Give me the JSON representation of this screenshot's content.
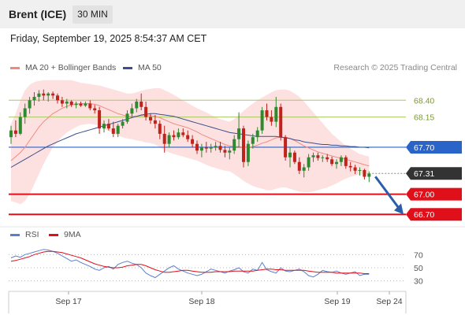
{
  "header": {
    "title": "Brent (ICE)",
    "timeframe": "30 MIN",
    "timestamp": "Friday, September 19, 2025 8:54:37 AM CET"
  },
  "legend": {
    "ma20_label": "MA 20 + Bollinger Bands",
    "ma50_label": "MA 50",
    "research": "Research © 2025 Trading Central",
    "rsi_label": "RSI",
    "rsi_ma_label": "9MA"
  },
  "colors": {
    "ma20": "#f08a80",
    "ma50": "#3a4f8f",
    "bollinger_fill": "#fde1e1",
    "candle_up": "#2f8a2f",
    "candle_down": "#c0221c",
    "resistance": "#a8c860",
    "pivot": "#2a64c8",
    "support": "#e0101a",
    "current": "#333333",
    "arrow": "#2a5ea8",
    "rsi": "#5a7fd0",
    "rsi_ma": "#e0101a"
  },
  "chart_data": [
    {
      "type": "candlestick",
      "title": "Brent (ICE) 30 MIN",
      "ylim": [
        66.55,
        68.72
      ],
      "x_ticks": [
        "Sep 17",
        "Sep 18",
        "Sep 19",
        "Sep 24"
      ],
      "levels": [
        {
          "label": "68.40",
          "value": 68.4,
          "kind": "resistance"
        },
        {
          "label": "68.15",
          "value": 68.15,
          "kind": "resistance"
        },
        {
          "label": "67.70",
          "value": 67.7,
          "kind": "pivot"
        },
        {
          "label": "67.31",
          "value": 67.31,
          "kind": "current"
        },
        {
          "label": "67.00",
          "value": 67.0,
          "kind": "support"
        },
        {
          "label": "66.70",
          "value": 66.7,
          "kind": "support"
        }
      ],
      "ohlc": [
        [
          67.85,
          68.02,
          67.75,
          67.95
        ],
        [
          67.95,
          68.1,
          67.85,
          67.9
        ],
        [
          67.9,
          68.22,
          67.88,
          68.15
        ],
        [
          68.15,
          68.35,
          68.05,
          68.28
        ],
        [
          68.28,
          68.45,
          68.2,
          68.4
        ],
        [
          68.4,
          68.52,
          68.32,
          68.45
        ],
        [
          68.45,
          68.55,
          68.38,
          68.5
        ],
        [
          68.5,
          68.56,
          68.4,
          68.47
        ],
        [
          68.47,
          68.52,
          68.38,
          68.5
        ],
        [
          68.5,
          68.53,
          68.42,
          68.47
        ],
        [
          68.47,
          68.5,
          68.35,
          68.4
        ],
        [
          68.4,
          68.45,
          68.3,
          68.35
        ],
        [
          68.35,
          68.42,
          68.28,
          68.38
        ],
        [
          68.38,
          68.4,
          68.3,
          68.33
        ],
        [
          68.33,
          68.38,
          68.28,
          68.35
        ],
        [
          68.35,
          68.38,
          68.3,
          68.32
        ],
        [
          68.32,
          68.38,
          68.3,
          68.35
        ],
        [
          68.35,
          68.4,
          68.25,
          68.28
        ],
        [
          68.28,
          68.33,
          68.2,
          68.25
        ],
        [
          68.25,
          68.3,
          67.9,
          67.98
        ],
        [
          67.98,
          68.1,
          67.92,
          68.05
        ],
        [
          68.05,
          68.12,
          67.95,
          67.98
        ],
        [
          67.98,
          68.08,
          67.85,
          67.9
        ],
        [
          67.9,
          68.05,
          67.85,
          68.02
        ],
        [
          68.02,
          68.12,
          67.98,
          68.08
        ],
        [
          68.08,
          68.25,
          68.05,
          68.2
        ],
        [
          68.2,
          68.35,
          68.15,
          68.28
        ],
        [
          68.28,
          68.42,
          68.22,
          68.38
        ],
        [
          68.38,
          68.5,
          68.25,
          68.3
        ],
        [
          68.3,
          68.38,
          68.1,
          68.15
        ],
        [
          68.15,
          68.2,
          68.05,
          68.1
        ],
        [
          68.1,
          68.18,
          67.98,
          68.05
        ],
        [
          68.05,
          68.1,
          67.82,
          67.9
        ],
        [
          67.9,
          68.02,
          67.62,
          67.75
        ],
        [
          67.75,
          67.92,
          67.7,
          67.88
        ],
        [
          67.88,
          67.95,
          67.8,
          67.85
        ],
        [
          67.85,
          67.98,
          67.82,
          67.92
        ],
        [
          67.92,
          67.98,
          67.85,
          67.88
        ],
        [
          67.88,
          67.95,
          67.78,
          67.82
        ],
        [
          67.82,
          67.88,
          67.7,
          67.75
        ],
        [
          67.75,
          67.8,
          67.6,
          67.65
        ],
        [
          67.65,
          67.75,
          67.55,
          67.7
        ],
        [
          67.7,
          67.78,
          67.62,
          67.68
        ],
        [
          67.68,
          67.75,
          67.62,
          67.7
        ],
        [
          67.7,
          67.78,
          67.65,
          67.72
        ],
        [
          67.72,
          67.78,
          67.62,
          67.66
        ],
        [
          67.66,
          67.72,
          67.55,
          67.62
        ],
        [
          67.62,
          67.7,
          67.52,
          67.65
        ],
        [
          67.65,
          67.88,
          67.6,
          67.82
        ],
        [
          67.82,
          68.22,
          67.7,
          67.98
        ],
        [
          67.98,
          68.02,
          67.4,
          67.48
        ],
        [
          67.48,
          67.8,
          67.42,
          67.75
        ],
        [
          67.75,
          67.9,
          67.68,
          67.85
        ],
        [
          67.85,
          68.0,
          67.78,
          67.95
        ],
        [
          67.95,
          68.3,
          67.9,
          68.25
        ],
        [
          68.25,
          68.35,
          68.1,
          68.15
        ],
        [
          68.15,
          68.25,
          68.02,
          68.08
        ],
        [
          68.08,
          68.45,
          68.0,
          68.3
        ],
        [
          68.3,
          68.35,
          67.8,
          67.85
        ],
        [
          67.85,
          67.88,
          67.5,
          67.55
        ],
        [
          67.55,
          67.7,
          67.4,
          67.62
        ],
        [
          67.62,
          67.65,
          67.45,
          67.48
        ],
        [
          67.48,
          67.55,
          67.3,
          67.35
        ],
        [
          67.35,
          67.45,
          67.25,
          67.4
        ],
        [
          67.4,
          67.6,
          67.35,
          67.55
        ],
        [
          67.55,
          67.62,
          67.48,
          67.58
        ],
        [
          67.58,
          67.62,
          67.5,
          67.54
        ],
        [
          67.54,
          67.58,
          67.48,
          67.55
        ],
        [
          67.55,
          67.6,
          67.48,
          67.52
        ],
        [
          67.52,
          67.56,
          67.42,
          67.45
        ],
        [
          67.45,
          67.52,
          67.38,
          67.48
        ],
        [
          67.48,
          67.58,
          67.42,
          67.55
        ],
        [
          67.55,
          67.58,
          67.38,
          67.42
        ],
        [
          67.42,
          67.48,
          67.34,
          67.4
        ],
        [
          67.4,
          67.44,
          67.3,
          67.35
        ],
        [
          67.35,
          67.4,
          67.28,
          67.36
        ],
        [
          67.36,
          67.38,
          67.22,
          67.26
        ],
        [
          67.26,
          67.34,
          67.18,
          67.31
        ]
      ],
      "ma20": [
        67.5,
        67.56,
        67.62,
        67.7,
        67.8,
        67.9,
        68.0,
        68.08,
        68.14,
        68.2,
        68.24,
        68.28,
        68.31,
        68.33,
        68.34,
        68.35,
        68.35,
        68.35,
        68.34,
        68.32,
        68.29,
        68.26,
        68.23,
        68.2,
        68.18,
        68.16,
        68.16,
        68.16,
        68.17,
        68.17,
        68.17,
        68.16,
        68.14,
        68.11,
        68.08,
        68.05,
        68.03,
        68.01,
        67.99,
        67.96,
        67.93,
        67.89,
        67.86,
        67.83,
        67.8,
        67.77,
        67.74,
        67.72,
        67.71,
        67.71,
        67.7,
        67.7,
        67.71,
        67.73,
        67.76,
        67.78,
        67.81,
        67.84,
        67.85,
        67.85,
        67.83,
        67.8,
        67.76,
        67.72,
        67.69,
        67.66,
        67.63,
        67.61,
        67.59,
        67.57,
        67.55,
        67.54,
        67.52,
        67.5,
        67.48,
        67.46,
        67.44,
        67.42
      ],
      "ma50": [
        67.4,
        67.44,
        67.48,
        67.52,
        67.56,
        67.6,
        67.64,
        67.68,
        67.72,
        67.75,
        67.78,
        67.81,
        67.84,
        67.87,
        67.9,
        67.92,
        67.94,
        67.96,
        67.98,
        68.0,
        68.02,
        68.04,
        68.06,
        68.08,
        68.1,
        68.12,
        68.14,
        68.16,
        68.18,
        68.19,
        68.2,
        68.2,
        68.19,
        68.18,
        68.17,
        68.16,
        68.14,
        68.12,
        68.1,
        68.08,
        68.06,
        68.04,
        68.02,
        68.0,
        67.98,
        67.96,
        67.94,
        67.92,
        67.91,
        67.9,
        67.89,
        67.88,
        67.87,
        67.86,
        67.86,
        67.86,
        67.86,
        67.86,
        67.85,
        67.84,
        67.83,
        67.81,
        67.8,
        67.78,
        67.77,
        67.76,
        67.75,
        67.74,
        67.74,
        67.73,
        67.73,
        67.72,
        67.72,
        67.71,
        67.71,
        67.7,
        67.7,
        67.69
      ],
      "bollinger_upper": [
        68.05,
        68.2,
        68.4,
        68.55,
        68.63,
        68.67,
        68.69,
        68.7,
        68.7,
        68.7,
        68.7,
        68.7,
        68.7,
        68.7,
        68.68,
        68.66,
        68.65,
        68.64,
        68.63,
        68.62,
        68.6,
        68.58,
        68.56,
        68.54,
        68.52,
        68.5,
        68.5,
        68.52,
        68.54,
        68.56,
        68.57,
        68.58,
        68.58,
        68.55,
        68.52,
        68.48,
        68.44,
        68.4,
        68.36,
        68.32,
        68.28,
        68.25,
        68.22,
        68.18,
        68.15,
        68.12,
        68.1,
        68.08,
        68.12,
        68.18,
        68.24,
        68.3,
        68.35,
        68.4,
        68.44,
        68.48,
        68.52,
        68.55,
        68.56,
        68.56,
        68.54,
        68.5,
        68.45,
        68.38,
        68.3,
        68.22,
        68.14,
        68.06,
        67.98,
        67.9,
        67.84,
        67.78,
        67.72,
        67.68,
        67.64,
        67.6,
        67.58,
        67.56
      ],
      "bollinger_lower": [
        66.9,
        66.88,
        66.85,
        66.9,
        67.0,
        67.15,
        67.3,
        67.45,
        67.58,
        67.7,
        67.78,
        67.86,
        67.92,
        67.96,
        68.0,
        68.03,
        68.04,
        68.05,
        68.04,
        68.02,
        67.98,
        67.94,
        67.9,
        67.87,
        67.85,
        67.83,
        67.82,
        67.8,
        67.79,
        67.77,
        67.76,
        67.74,
        67.7,
        67.66,
        67.62,
        67.6,
        67.58,
        67.56,
        67.54,
        67.52,
        67.5,
        67.47,
        67.44,
        67.41,
        67.39,
        67.37,
        67.35,
        67.34,
        67.3,
        67.25,
        67.2,
        67.16,
        67.12,
        67.1,
        67.08,
        67.06,
        67.06,
        67.08,
        67.1,
        67.1,
        67.08,
        67.06,
        67.04,
        67.03,
        67.03,
        67.04,
        67.06,
        67.08,
        67.1,
        67.13,
        67.16,
        67.2,
        67.23,
        67.26,
        67.28,
        67.29,
        67.3,
        67.3
      ]
    },
    {
      "type": "line",
      "title": "RSI",
      "ylim": [
        20,
        80
      ],
      "y_ticks": [
        "70",
        "50",
        "30"
      ],
      "series": [
        {
          "name": "RSI",
          "values": [
            65,
            68,
            66,
            70,
            72,
            74,
            76,
            78,
            77,
            75,
            72,
            68,
            64,
            60,
            62,
            58,
            55,
            52,
            48,
            46,
            50,
            52,
            48,
            55,
            58,
            60,
            57,
            55,
            50,
            42,
            38,
            35,
            40,
            45,
            50,
            53,
            48,
            45,
            42,
            40,
            38,
            40,
            44,
            48,
            46,
            44,
            42,
            45,
            47,
            50,
            44,
            42,
            48,
            46,
            58,
            47,
            44,
            42,
            50,
            45,
            44,
            46,
            48,
            44,
            38,
            36,
            40,
            46,
            44,
            43,
            45,
            42,
            40,
            42,
            44,
            38,
            40,
            40
          ]
        },
        {
          "name": "9MA",
          "values": [
            60,
            61,
            63,
            65,
            67,
            70,
            72,
            74,
            75,
            75,
            74,
            73,
            71,
            69,
            67,
            65,
            62,
            59,
            56,
            54,
            52,
            51,
            50,
            50,
            51,
            53,
            54,
            55,
            55,
            53,
            50,
            47,
            45,
            43,
            43,
            44,
            45,
            46,
            46,
            45,
            44,
            43,
            43,
            43,
            44,
            44,
            44,
            44,
            45,
            45,
            45,
            45,
            45,
            46,
            47,
            48,
            48,
            47,
            47,
            46,
            46,
            46,
            46,
            46,
            45,
            44,
            43,
            43,
            43,
            43,
            42,
            42,
            42,
            42,
            42,
            42,
            41,
            41
          ]
        }
      ]
    }
  ]
}
